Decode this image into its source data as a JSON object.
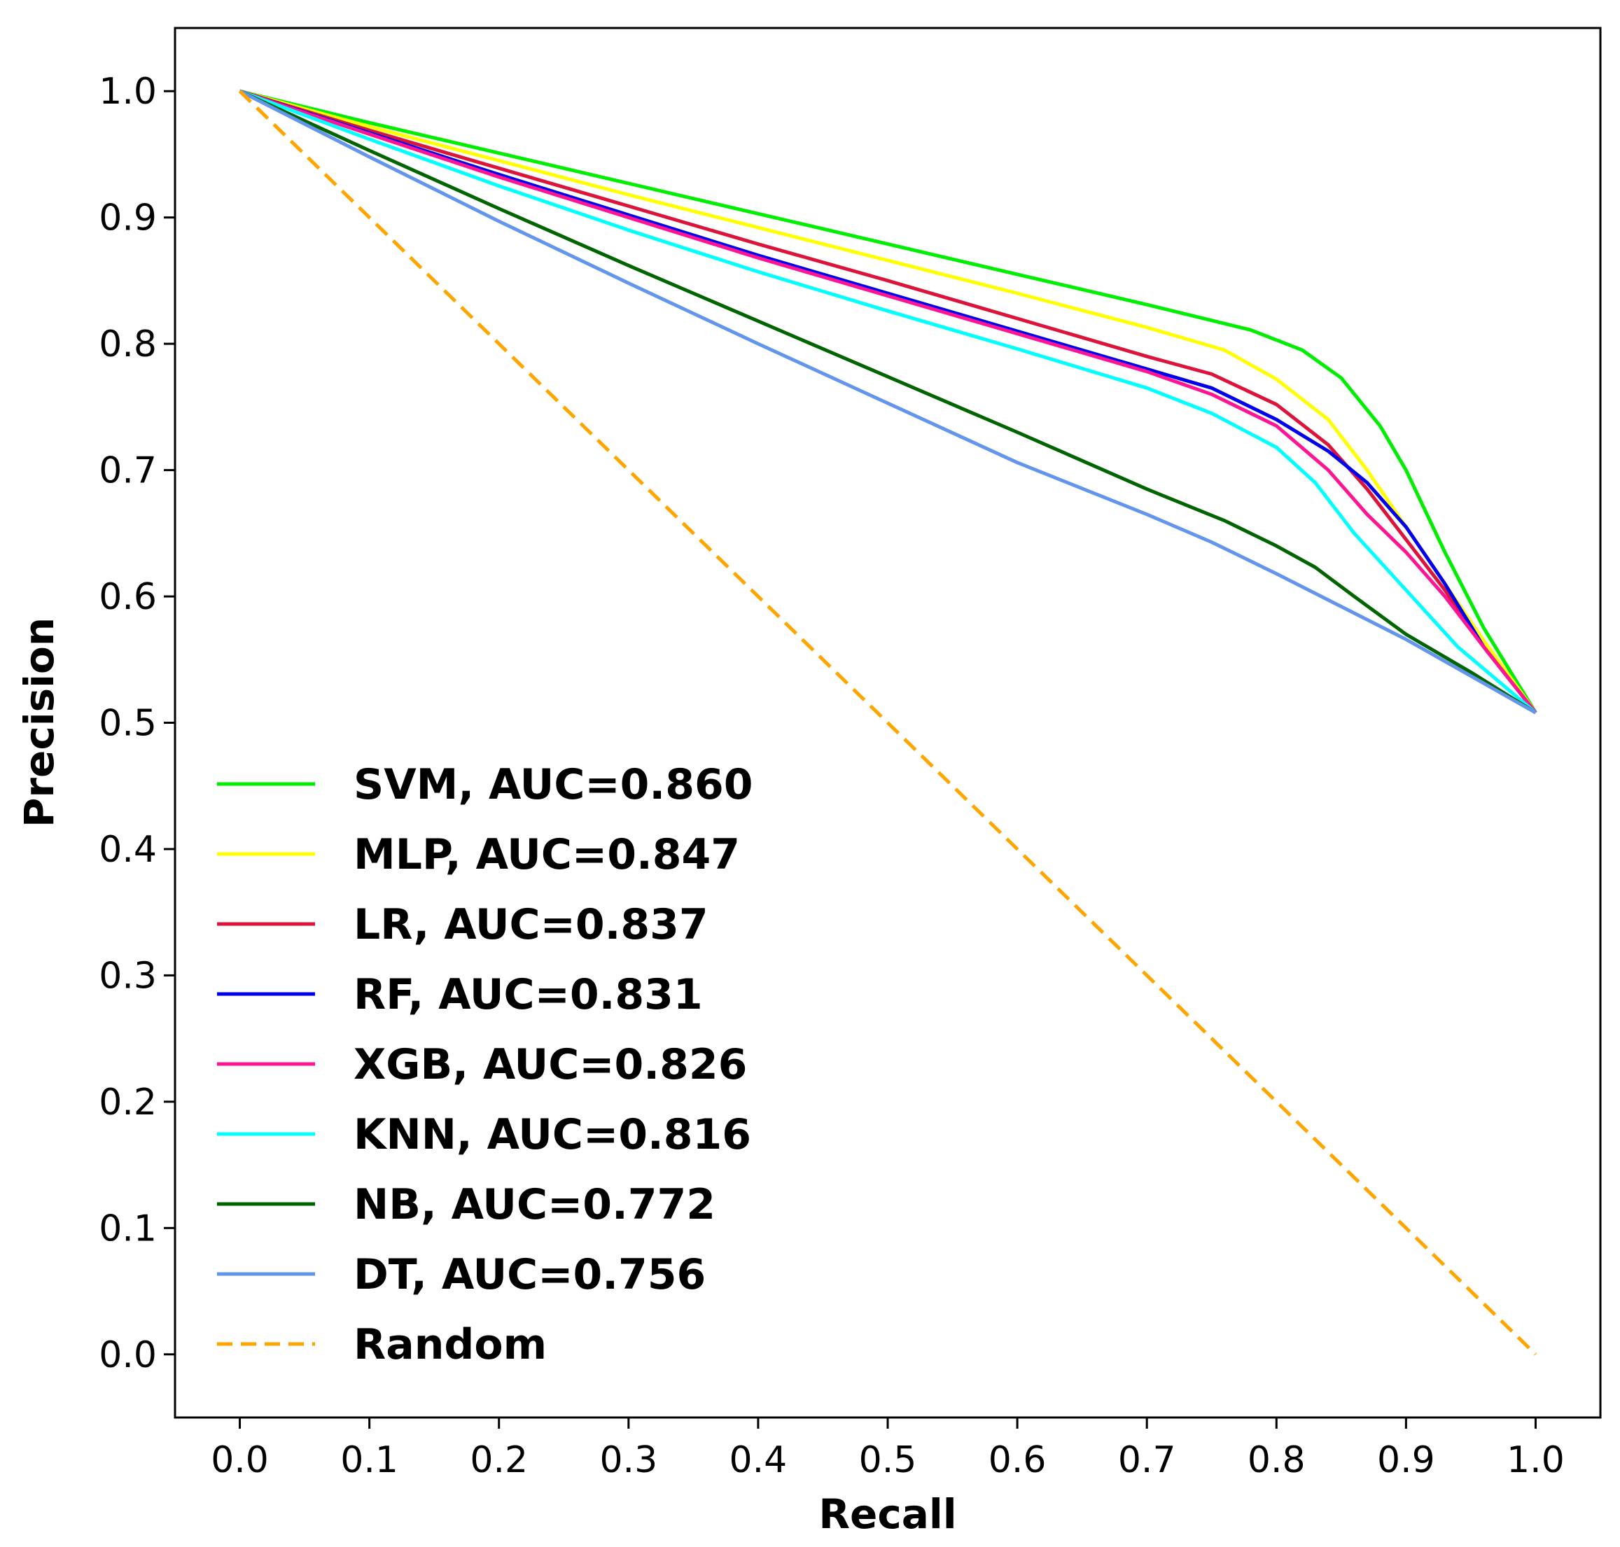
{
  "chart_data": {
    "type": "line",
    "title": "",
    "xlabel": "Recall",
    "ylabel": "Precision",
    "xlim": [
      -0.05,
      1.05
    ],
    "ylim": [
      -0.05,
      1.05
    ],
    "x_ticks": [
      "0.0",
      "0.1",
      "0.2",
      "0.3",
      "0.4",
      "0.5",
      "0.6",
      "0.7",
      "0.8",
      "0.9",
      "1.0"
    ],
    "y_ticks": [
      "0.0",
      "0.1",
      "0.2",
      "0.3",
      "0.4",
      "0.5",
      "0.6",
      "0.7",
      "0.8",
      "0.9",
      "1.0"
    ],
    "grid": false,
    "legend_position": "lower-left",
    "series": [
      {
        "name": "SVM, AUC=0.860",
        "color": "#00ee00",
        "dash": false,
        "points": [
          [
            0,
            1.0
          ],
          [
            0.1,
            0.975
          ],
          [
            0.2,
            0.951
          ],
          [
            0.3,
            0.927
          ],
          [
            0.4,
            0.903
          ],
          [
            0.5,
            0.879
          ],
          [
            0.6,
            0.855
          ],
          [
            0.7,
            0.831
          ],
          [
            0.78,
            0.811
          ],
          [
            0.82,
            0.795
          ],
          [
            0.85,
            0.773
          ],
          [
            0.88,
            0.735
          ],
          [
            0.9,
            0.7
          ],
          [
            0.93,
            0.635
          ],
          [
            0.96,
            0.575
          ],
          [
            1.0,
            0.508
          ]
        ]
      },
      {
        "name": "MLP, AUC=0.847",
        "color": "#ffff00",
        "dash": false,
        "points": [
          [
            0,
            1.0
          ],
          [
            0.1,
            0.972
          ],
          [
            0.2,
            0.945
          ],
          [
            0.3,
            0.918
          ],
          [
            0.4,
            0.892
          ],
          [
            0.5,
            0.866
          ],
          [
            0.6,
            0.84
          ],
          [
            0.7,
            0.813
          ],
          [
            0.76,
            0.795
          ],
          [
            0.8,
            0.772
          ],
          [
            0.84,
            0.74
          ],
          [
            0.87,
            0.7
          ],
          [
            0.9,
            0.655
          ],
          [
            0.93,
            0.61
          ],
          [
            0.96,
            0.565
          ],
          [
            1.0,
            0.508
          ]
        ]
      },
      {
        "name": "LR, AUC=0.837",
        "color": "#dc143c",
        "dash": false,
        "points": [
          [
            0,
            1.0
          ],
          [
            0.1,
            0.969
          ],
          [
            0.2,
            0.939
          ],
          [
            0.3,
            0.909
          ],
          [
            0.4,
            0.879
          ],
          [
            0.5,
            0.85
          ],
          [
            0.6,
            0.82
          ],
          [
            0.7,
            0.79
          ],
          [
            0.75,
            0.776
          ],
          [
            0.8,
            0.752
          ],
          [
            0.84,
            0.72
          ],
          [
            0.87,
            0.685
          ],
          [
            0.9,
            0.645
          ],
          [
            0.93,
            0.605
          ],
          [
            0.96,
            0.56
          ],
          [
            1.0,
            0.508
          ]
        ]
      },
      {
        "name": "RF, AUC=0.831",
        "color": "#0000ee",
        "dash": false,
        "points": [
          [
            0,
            1.0
          ],
          [
            0.1,
            0.967
          ],
          [
            0.2,
            0.934
          ],
          [
            0.3,
            0.902
          ],
          [
            0.4,
            0.87
          ],
          [
            0.5,
            0.84
          ],
          [
            0.6,
            0.81
          ],
          [
            0.7,
            0.78
          ],
          [
            0.75,
            0.765
          ],
          [
            0.8,
            0.74
          ],
          [
            0.84,
            0.715
          ],
          [
            0.87,
            0.69
          ],
          [
            0.9,
            0.655
          ],
          [
            0.93,
            0.61
          ],
          [
            0.96,
            0.56
          ],
          [
            1.0,
            0.508
          ]
        ]
      },
      {
        "name": "XGB, AUC=0.826",
        "color": "#ff1493",
        "dash": false,
        "points": [
          [
            0,
            1.0
          ],
          [
            0.1,
            0.966
          ],
          [
            0.2,
            0.932
          ],
          [
            0.3,
            0.9
          ],
          [
            0.4,
            0.868
          ],
          [
            0.5,
            0.838
          ],
          [
            0.6,
            0.808
          ],
          [
            0.7,
            0.778
          ],
          [
            0.75,
            0.76
          ],
          [
            0.8,
            0.735
          ],
          [
            0.84,
            0.7
          ],
          [
            0.87,
            0.665
          ],
          [
            0.9,
            0.635
          ],
          [
            0.93,
            0.6
          ],
          [
            0.96,
            0.56
          ],
          [
            1.0,
            0.508
          ]
        ]
      },
      {
        "name": "KNN, AUC=0.816",
        "color": "#00ffff",
        "dash": false,
        "points": [
          [
            0,
            1.0
          ],
          [
            0.1,
            0.962
          ],
          [
            0.2,
            0.925
          ],
          [
            0.3,
            0.89
          ],
          [
            0.4,
            0.857
          ],
          [
            0.5,
            0.826
          ],
          [
            0.6,
            0.796
          ],
          [
            0.7,
            0.765
          ],
          [
            0.75,
            0.745
          ],
          [
            0.8,
            0.718
          ],
          [
            0.83,
            0.69
          ],
          [
            0.86,
            0.65
          ],
          [
            0.9,
            0.605
          ],
          [
            0.94,
            0.56
          ],
          [
            1.0,
            0.508
          ]
        ]
      },
      {
        "name": "NB, AUC=0.772",
        "color": "#006400",
        "dash": false,
        "points": [
          [
            0,
            1.0
          ],
          [
            0.1,
            0.953
          ],
          [
            0.2,
            0.907
          ],
          [
            0.3,
            0.862
          ],
          [
            0.4,
            0.818
          ],
          [
            0.5,
            0.774
          ],
          [
            0.6,
            0.73
          ],
          [
            0.7,
            0.685
          ],
          [
            0.76,
            0.66
          ],
          [
            0.8,
            0.64
          ],
          [
            0.83,
            0.623
          ],
          [
            0.86,
            0.6
          ],
          [
            0.9,
            0.57
          ],
          [
            0.95,
            0.54
          ],
          [
            1.0,
            0.508
          ]
        ]
      },
      {
        "name": "DT, AUC=0.756",
        "color": "#6495ed",
        "dash": false,
        "points": [
          [
            0,
            1.0
          ],
          [
            0.1,
            0.948
          ],
          [
            0.2,
            0.897
          ],
          [
            0.3,
            0.848
          ],
          [
            0.4,
            0.8
          ],
          [
            0.5,
            0.753
          ],
          [
            0.6,
            0.706
          ],
          [
            0.7,
            0.665
          ],
          [
            0.75,
            0.643
          ],
          [
            0.8,
            0.618
          ],
          [
            0.85,
            0.592
          ],
          [
            0.9,
            0.566
          ],
          [
            0.95,
            0.537
          ],
          [
            1.0,
            0.508
          ]
        ]
      },
      {
        "name": "Random",
        "color": "#ffa500",
        "dash": true,
        "points": [
          [
            0,
            1.0
          ],
          [
            1.0,
            0.0
          ]
        ]
      }
    ]
  }
}
